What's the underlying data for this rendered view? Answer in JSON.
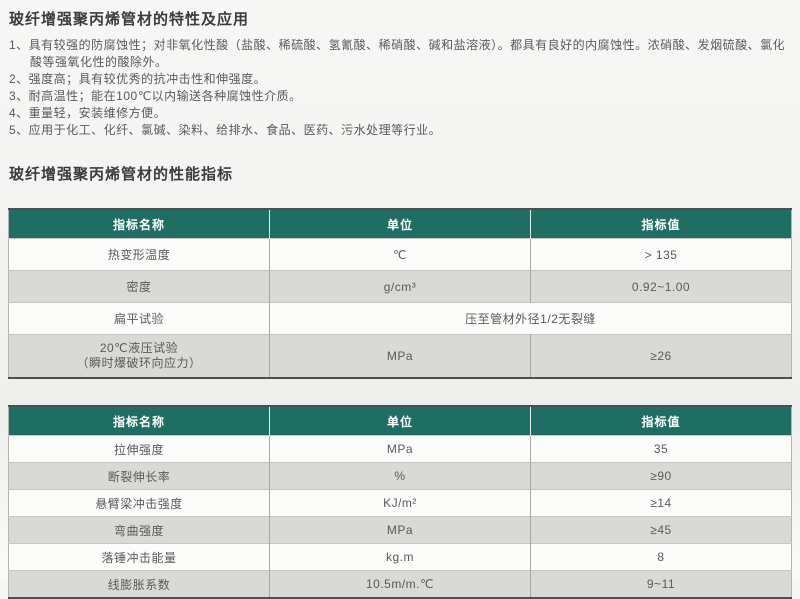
{
  "doc": {
    "section1_title": "玻纤增强聚丙烯管材的特性及应用",
    "features": [
      "1、具有较强的防腐蚀性；对非氧化性酸（盐酸、稀硫酸、氢氰酸、稀硝酸、碱和盐溶液）。都具有良好的内腐蚀性。浓硝酸、发烟硫酸、氯化酸等强氧化性的酸除外。",
      "2、强度高；具有较优秀的抗冲击性和伸强度。",
      "3、耐高温性；能在100℃以内输送各种腐蚀性介质。",
      "4、重量轻，安装维修方便。",
      "5、应用于化工、化纤、氯碱、染料、给排水、食品、医药、污水处理等行业。"
    ],
    "section2_title": "玻纤增强聚丙烯管材的性能指标",
    "colors": {
      "header_bg": "#1f6e63",
      "row_alt_bg": "#d9d9d6",
      "border_dark": "#4e4e4e"
    },
    "tables": [
      {
        "headers": [
          "指标名称",
          "单位",
          "指标值"
        ],
        "rows": [
          {
            "cells": [
              "热变形温度",
              "℃",
              "> 135"
            ]
          },
          {
            "cells": [
              "密度",
              "g/cm³",
              "0.92~1.00"
            ]
          },
          {
            "cells": [
              "扁平试验",
              "压至管材外径1/2无裂缝"
            ],
            "merged": true
          },
          {
            "cells": [
              "20℃液压试验\n（瞬时爆破环向应力）",
              "MPa",
              "≥26"
            ],
            "tall": true
          }
        ]
      },
      {
        "headers": [
          "指标名称",
          "单位",
          "指标值"
        ],
        "rows": [
          {
            "cells": [
              "拉伸强度",
              "MPa",
              "35"
            ]
          },
          {
            "cells": [
              "断裂伸长率",
              "%",
              "≥90"
            ]
          },
          {
            "cells": [
              "悬臂梁冲击强度",
              "KJ/m²",
              "≥14"
            ]
          },
          {
            "cells": [
              "弯曲强度",
              "MPa",
              "≥45"
            ]
          },
          {
            "cells": [
              "落锤冲击能量",
              "kg.m",
              "8"
            ]
          },
          {
            "cells": [
              "线膨胀系数",
              "10.5m/m.℃",
              "9~11"
            ]
          }
        ]
      }
    ]
  }
}
